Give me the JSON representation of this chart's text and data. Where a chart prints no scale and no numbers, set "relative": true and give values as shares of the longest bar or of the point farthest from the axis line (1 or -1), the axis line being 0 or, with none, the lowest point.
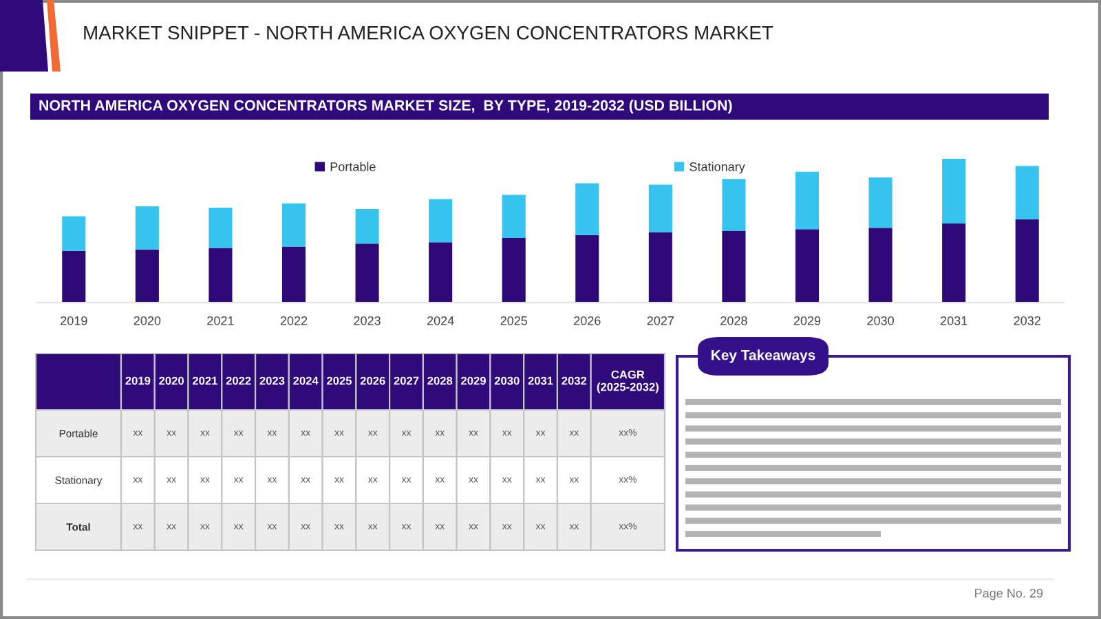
{
  "chart_data": [
    {
      "type": "other",
      "title": "MARKET SNIPPET - NORTH AMERICA OXYGEN CONCENTRATORS MARKET",
      "annotations": [
        "Page No. 29"
      ]
    },
    {
      "type": "bar",
      "title": "NORTH AMERICA OXYGEN CONCENTRATORS MARKET SIZE,  BY TYPE, 2019-2032 (USD BILLION)",
      "categories": [
        "2019",
        "2020",
        "2021",
        "2022",
        "2023",
        "2024",
        "2025",
        "2026",
        "2027",
        "2028",
        "2029",
        "2030",
        "2031",
        "2032"
      ],
      "stacked": true,
      "relative": true,
      "legend": "top",
      "series": [
        {
          "name": "Portable",
          "color": "#2e0a78",
          "values": [
            0.36,
            0.37,
            0.38,
            0.39,
            0.41,
            0.42,
            0.45,
            0.47,
            0.49,
            0.5,
            0.51,
            0.52,
            0.55,
            0.58
          ]
        },
        {
          "name": "Stationary",
          "color": "#36c4ee",
          "values": [
            0.24,
            0.3,
            0.28,
            0.3,
            0.24,
            0.3,
            0.3,
            0.36,
            0.33,
            0.36,
            0.4,
            0.35,
            0.45,
            0.37
          ]
        }
      ]
    },
    {
      "type": "heatmap",
      "categories": [
        "2019",
        "2020",
        "2021",
        "2022",
        "2023",
        "2024",
        "2025",
        "2026",
        "2027",
        "2028",
        "2029",
        "2030",
        "2031",
        "2032",
        "CAGR (2025-2032)"
      ],
      "y_categories": [
        "Portable",
        "Stationary",
        "Total"
      ],
      "cells": [
        [
          null,
          null,
          null,
          null,
          null,
          null,
          null,
          null,
          null,
          null,
          null,
          null,
          null,
          null,
          null
        ],
        [
          null,
          null,
          null,
          null,
          null,
          null,
          null,
          null,
          null,
          null,
          null,
          null,
          null,
          null,
          null
        ],
        [
          null,
          null,
          null,
          null,
          null,
          null,
          null,
          null,
          null,
          null,
          null,
          null,
          null,
          null,
          null
        ]
      ],
      "cell_labels": [
        [
          "xx",
          "xx",
          "xx",
          "xx",
          "xx",
          "xx",
          "xx",
          "xx",
          "xx",
          "xx",
          "xx",
          "xx",
          "xx",
          "xx",
          "xx%"
        ],
        [
          "xx",
          "xx",
          "xx",
          "xx",
          "xx",
          "xx",
          "xx",
          "xx",
          "xx",
          "xx",
          "xx",
          "xx",
          "xx",
          "xx",
          "xx%"
        ],
        [
          "xx",
          "xx",
          "xx",
          "xx",
          "xx",
          "xx",
          "xx",
          "xx",
          "xx",
          "xx",
          "xx",
          "xx",
          "xx",
          "xx",
          "xx%"
        ]
      ]
    },
    {
      "type": "other",
      "title": "Key Takeaways"
    }
  ]
}
